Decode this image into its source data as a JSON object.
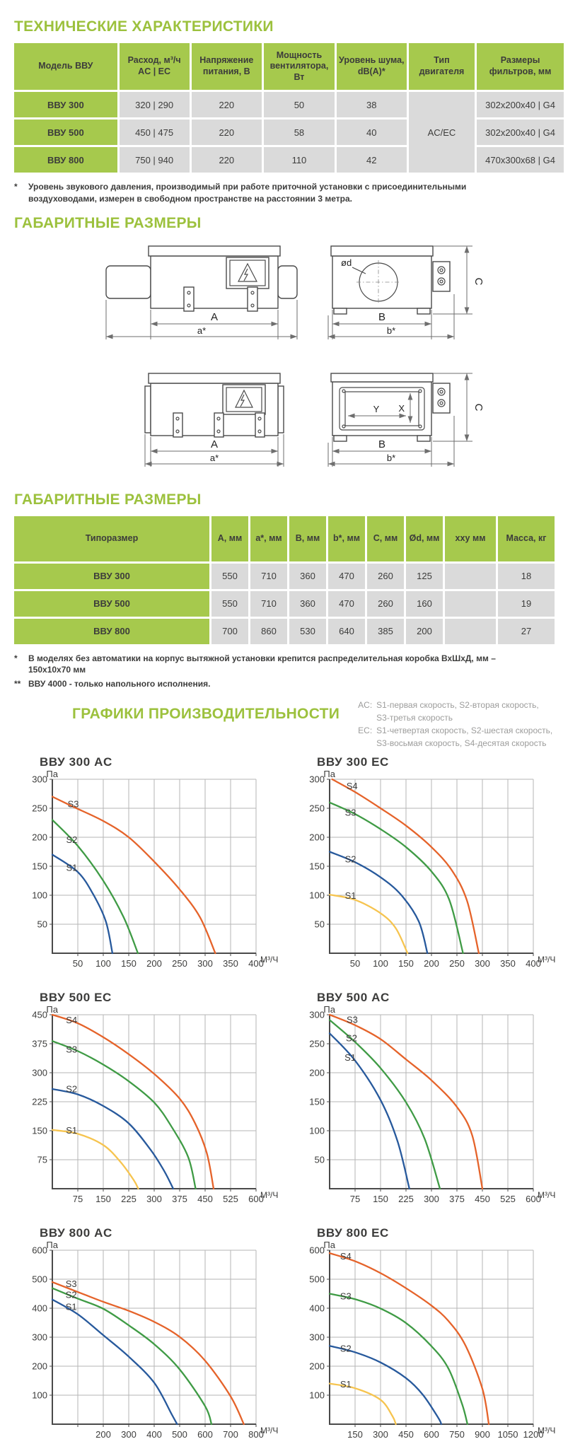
{
  "page": {
    "section1_title": "ТЕХНИЧЕСКИЕ ХАРАКТЕРИСТИКИ",
    "section2_title": "ГАБАРИТНЫЕ РАЗМЕРЫ",
    "section3_title": "ГАБАРИТНЫЕ РАЗМЕРЫ",
    "section4_title": "ГРАФИКИ ПРОИЗВОДИТЕЛЬНОСТИ"
  },
  "colors": {
    "accent_green": "#9cc13d",
    "cell_green": "#a6c94d",
    "cell_gray": "#dadada",
    "text_dark": "#3c3c3b",
    "legend_gray": "#9c9c9b",
    "grid_gray": "#b5b5b5",
    "curve_orange": "#e5632a",
    "curve_green": "#3f9b45",
    "curve_blue": "#27599c",
    "curve_yellow": "#f6c44f"
  },
  "spec_table": {
    "headers": [
      "Модель ВВУ",
      "Расход, м³/ч\nAC | EC",
      "Напряжение питания, В",
      "Мощность вентилятора, Вт",
      "Уровень шума, dB(A)*",
      "Тип двигателя",
      "Размеры фильтров, мм"
    ],
    "motor_type": "AC/EC",
    "rows": [
      {
        "model": "ВВУ 300",
        "flow": "320 | 290",
        "voltage": "220",
        "power": "50",
        "noise": "38",
        "filter": "302x200x40 | G4"
      },
      {
        "model": "ВВУ 500",
        "flow": "450 | 475",
        "voltage": "220",
        "power": "58",
        "noise": "40",
        "filter": "302x200x40 | G4"
      },
      {
        "model": "ВВУ 800",
        "flow": "750 | 940",
        "voltage": "220",
        "power": "110",
        "noise": "42",
        "filter": "470x300x68 | G4"
      }
    ],
    "footnote_star": "*",
    "footnote": "Уровень звукового давления, производимый при работе приточной установки с присоединительными воздуховодами, измерен в свободном пространстве на расстоянии 3 метра."
  },
  "drawings": {
    "labels": {
      "A": "A",
      "a": "a*",
      "B": "B",
      "b": "b*",
      "C": "C",
      "d": "ød",
      "X": "X",
      "Y": "Y"
    }
  },
  "dimensions_table": {
    "headers": [
      "Типоразмер",
      "А, мм",
      "a*, мм",
      "В, мм",
      "b*, мм",
      "С, мм",
      "Ød, мм",
      "хху мм",
      "Масса, кг"
    ],
    "rows": [
      [
        "ВВУ 300",
        "550",
        "710",
        "360",
        "470",
        "260",
        "125",
        "",
        "18"
      ],
      [
        "ВВУ 500",
        "550",
        "710",
        "360",
        "470",
        "260",
        "160",
        "",
        "19"
      ],
      [
        "ВВУ 800",
        "700",
        "860",
        "530",
        "640",
        "385",
        "200",
        "",
        "27"
      ]
    ],
    "footnote1_star": "*",
    "footnote1": "В моделях без автоматики на корпус вытяжной установки крепится распределительная коробка ВхШхД, мм – 150х10х70 мм",
    "footnote2_star": "**",
    "footnote2": "ВВУ 4000 - только напольного исполнения."
  },
  "legend": {
    "ac": {
      "prefix": "AC:",
      "line1": "S1-первая скорость, S2-вторая скорость,",
      "line2": "S3-третья скорость"
    },
    "ec": {
      "prefix": "EC:",
      "line1": "S1-четвертая скорость, S2-шестая скорость,",
      "line2": "S3-восьмая скорость, S4-десятая скорость"
    }
  },
  "chart_data": [
    {
      "type": "line",
      "title": "ВВУ 300 AC",
      "ylabel": "Па",
      "xlabel": "М³/Ч",
      "xlim": [
        0,
        400
      ],
      "ylim": [
        0,
        300
      ],
      "x_grid_step": 50,
      "y_grid_step": 50,
      "x_labels": [
        50,
        100,
        150,
        200,
        250,
        300,
        350,
        400
      ],
      "y_labels": [
        50,
        100,
        150,
        200,
        250,
        300
      ],
      "series": [
        {
          "name": "S3",
          "color": "#e5632a",
          "label_at": [
            30,
            252
          ],
          "points": [
            [
              0,
              270
            ],
            [
              40,
              253
            ],
            [
              100,
              228
            ],
            [
              150,
              200
            ],
            [
              200,
              158
            ],
            [
              250,
              110
            ],
            [
              290,
              62
            ],
            [
              320,
              0
            ]
          ]
        },
        {
          "name": "S2",
          "color": "#3f9b45",
          "label_at": [
            27,
            190
          ],
          "points": [
            [
              0,
              230
            ],
            [
              50,
              185
            ],
            [
              100,
              125
            ],
            [
              140,
              62
            ],
            [
              168,
              0
            ]
          ]
        },
        {
          "name": "S1",
          "color": "#27599c",
          "label_at": [
            27,
            142
          ],
          "points": [
            [
              0,
              170
            ],
            [
              50,
              140
            ],
            [
              80,
              102
            ],
            [
              105,
              55
            ],
            [
              118,
              0
            ]
          ]
        }
      ]
    },
    {
      "type": "line",
      "title": "ВВУ 300 EC",
      "ylabel": "Па",
      "xlabel": "М³/Ч",
      "xlim": [
        0,
        400
      ],
      "ylim": [
        0,
        300
      ],
      "x_grid_step": 50,
      "y_grid_step": 50,
      "x_labels": [
        50,
        100,
        150,
        200,
        250,
        300,
        350,
        400
      ],
      "y_labels": [
        50,
        100,
        150,
        200,
        250,
        300
      ],
      "series": [
        {
          "name": "S4",
          "color": "#e5632a",
          "label_at": [
            33,
            283
          ],
          "points": [
            [
              5,
              300
            ],
            [
              50,
              278
            ],
            [
              100,
              250
            ],
            [
              150,
              220
            ],
            [
              200,
              183
            ],
            [
              240,
              143
            ],
            [
              270,
              90
            ],
            [
              293,
              0
            ]
          ]
        },
        {
          "name": "S3",
          "color": "#3f9b45",
          "label_at": [
            30,
            237
          ],
          "points": [
            [
              0,
              260
            ],
            [
              50,
              240
            ],
            [
              100,
              214
            ],
            [
              150,
              183
            ],
            [
              200,
              141
            ],
            [
              235,
              92
            ],
            [
              262,
              0
            ]
          ]
        },
        {
          "name": "S2",
          "color": "#27599c",
          "label_at": [
            30,
            157
          ],
          "points": [
            [
              0,
              175
            ],
            [
              50,
              157
            ],
            [
              100,
              131
            ],
            [
              140,
              101
            ],
            [
              175,
              55
            ],
            [
              192,
              0
            ]
          ]
        },
        {
          "name": "S1",
          "color": "#f6c44f",
          "label_at": [
            30,
            94
          ],
          "points": [
            [
              0,
              101
            ],
            [
              50,
              92
            ],
            [
              100,
              69
            ],
            [
              130,
              43
            ],
            [
              153,
              0
            ]
          ]
        }
      ]
    },
    {
      "type": "line",
      "title": "ВВУ 500 EC",
      "ylabel": "Па",
      "xlabel": "М³/Ч",
      "xlim": [
        0,
        600
      ],
      "ylim": [
        0,
        450
      ],
      "x_grid_step": 75,
      "y_grid_step": 75,
      "x_labels": [
        75,
        150,
        225,
        300,
        375,
        450,
        525,
        600
      ],
      "y_labels": [
        75,
        150,
        225,
        300,
        375,
        450
      ],
      "series": [
        {
          "name": "S4",
          "color": "#e5632a",
          "label_at": [
            40,
            428
          ],
          "points": [
            [
              0,
              450
            ],
            [
              75,
              428
            ],
            [
              150,
              392
            ],
            [
              225,
              348
            ],
            [
              300,
              297
            ],
            [
              375,
              233
            ],
            [
              420,
              170
            ],
            [
              455,
              92
            ],
            [
              475,
              0
            ]
          ]
        },
        {
          "name": "S3",
          "color": "#3f9b45",
          "label_at": [
            40,
            352
          ],
          "points": [
            [
              0,
              382
            ],
            [
              75,
              356
            ],
            [
              150,
              321
            ],
            [
              225,
              278
            ],
            [
              300,
              223
            ],
            [
              350,
              162
            ],
            [
              400,
              82
            ],
            [
              422,
              0
            ]
          ]
        },
        {
          "name": "S2",
          "color": "#27599c",
          "label_at": [
            40,
            250
          ],
          "points": [
            [
              0,
              258
            ],
            [
              75,
              244
            ],
            [
              150,
              214
            ],
            [
              225,
              169
            ],
            [
              290,
              100
            ],
            [
              330,
              45
            ],
            [
              356,
              0
            ]
          ]
        },
        {
          "name": "S1",
          "color": "#f6c44f",
          "label_at": [
            40,
            143
          ],
          "points": [
            [
              0,
              152
            ],
            [
              75,
              142
            ],
            [
              150,
              113
            ],
            [
              200,
              70
            ],
            [
              240,
              22
            ],
            [
              253,
              0
            ]
          ]
        }
      ]
    },
    {
      "type": "line",
      "title": "ВВУ 500 AC",
      "ylabel": "Па",
      "xlabel": "М³/Ч",
      "xlim": [
        0,
        600
      ],
      "ylim": [
        0,
        300
      ],
      "x_grid_step": 75,
      "y_grid_step": 50,
      "x_labels": [
        75,
        150,
        225,
        300,
        375,
        450,
        525,
        600
      ],
      "y_labels": [
        50,
        100,
        150,
        200,
        250,
        300
      ],
      "series": [
        {
          "name": "S3",
          "color": "#e5632a",
          "label_at": [
            50,
            286
          ],
          "points": [
            [
              0,
              300
            ],
            [
              75,
              282
            ],
            [
              150,
              258
            ],
            [
              225,
              223
            ],
            [
              300,
              187
            ],
            [
              375,
              141
            ],
            [
              420,
              92
            ],
            [
              450,
              0
            ]
          ]
        },
        {
          "name": "S2",
          "color": "#3f9b45",
          "label_at": [
            48,
            254
          ],
          "points": [
            [
              0,
              291
            ],
            [
              75,
              253
            ],
            [
              150,
              208
            ],
            [
              225,
              149
            ],
            [
              280,
              86
            ],
            [
              325,
              0
            ]
          ]
        },
        {
          "name": "S1",
          "color": "#27599c",
          "label_at": [
            44,
            221
          ],
          "points": [
            [
              0,
              268
            ],
            [
              75,
              221
            ],
            [
              150,
              153
            ],
            [
              200,
              82
            ],
            [
              235,
              0
            ]
          ]
        }
      ]
    },
    {
      "type": "line",
      "title": "ВВУ 800 AC",
      "ylabel": "Па",
      "xlabel": "М³/Ч",
      "xlim": [
        0,
        800
      ],
      "ylim": [
        0,
        600
      ],
      "x_grid_step": 100,
      "y_grid_step": 100,
      "x_labels": [
        200,
        300,
        400,
        500,
        600,
        700,
        800
      ],
      "y_labels": [
        100,
        200,
        300,
        400,
        500,
        600
      ],
      "series": [
        {
          "name": "S3",
          "color": "#e5632a",
          "label_at": [
            52,
            473
          ],
          "points": [
            [
              0,
              490
            ],
            [
              100,
              456
            ],
            [
              200,
              422
            ],
            [
              300,
              391
            ],
            [
              400,
              353
            ],
            [
              500,
              301
            ],
            [
              600,
              219
            ],
            [
              700,
              96
            ],
            [
              752,
              0
            ]
          ]
        },
        {
          "name": "S2",
          "color": "#3f9b45",
          "label_at": [
            52,
            435
          ],
          "points": [
            [
              0,
              469
            ],
            [
              100,
              433
            ],
            [
              200,
              398
            ],
            [
              300,
              341
            ],
            [
              400,
              276
            ],
            [
              500,
              189
            ],
            [
              600,
              62
            ],
            [
              625,
              0
            ]
          ]
        },
        {
          "name": "S1",
          "color": "#27599c",
          "label_at": [
            52,
            394
          ],
          "points": [
            [
              0,
              430
            ],
            [
              100,
              379
            ],
            [
              200,
              307
            ],
            [
              300,
              233
            ],
            [
              400,
              143
            ],
            [
              470,
              32
            ],
            [
              490,
              0
            ]
          ]
        }
      ]
    },
    {
      "type": "line",
      "title": "ВВУ 800 EC",
      "ylabel": "Па",
      "xlabel": "М³/Ч",
      "xlim": [
        0,
        1200
      ],
      "ylim": [
        0,
        600
      ],
      "x_grid_step": 150,
      "y_grid_step": 100,
      "x_labels": [
        150,
        300,
        450,
        600,
        750,
        900,
        1050,
        1200
      ],
      "y_labels": [
        100,
        200,
        300,
        400,
        500,
        600
      ],
      "series": [
        {
          "name": "S4",
          "color": "#e5632a",
          "label_at": [
            62,
            568
          ],
          "points": [
            [
              0,
              590
            ],
            [
              150,
              562
            ],
            [
              300,
              521
            ],
            [
              450,
              469
            ],
            [
              600,
              409
            ],
            [
              700,
              356
            ],
            [
              800,
              272
            ],
            [
              900,
              122
            ],
            [
              938,
              0
            ]
          ]
        },
        {
          "name": "S3",
          "color": "#3f9b45",
          "label_at": [
            62,
            430
          ],
          "points": [
            [
              0,
              450
            ],
            [
              150,
              431
            ],
            [
              300,
              399
            ],
            [
              450,
              349
            ],
            [
              600,
              269
            ],
            [
              700,
              192
            ],
            [
              780,
              70
            ],
            [
              812,
              0
            ]
          ]
        },
        {
          "name": "S2",
          "color": "#27599c",
          "label_at": [
            62,
            250
          ],
          "points": [
            [
              0,
              270
            ],
            [
              150,
              248
            ],
            [
              300,
              213
            ],
            [
              450,
              159
            ],
            [
              550,
              101
            ],
            [
              640,
              22
            ],
            [
              658,
              0
            ]
          ]
        },
        {
          "name": "S1",
          "color": "#f6c44f",
          "label_at": [
            62,
            127
          ],
          "points": [
            [
              0,
              140
            ],
            [
              150,
              124
            ],
            [
              300,
              84
            ],
            [
              370,
              28
            ],
            [
              390,
              0
            ]
          ]
        }
      ]
    }
  ]
}
